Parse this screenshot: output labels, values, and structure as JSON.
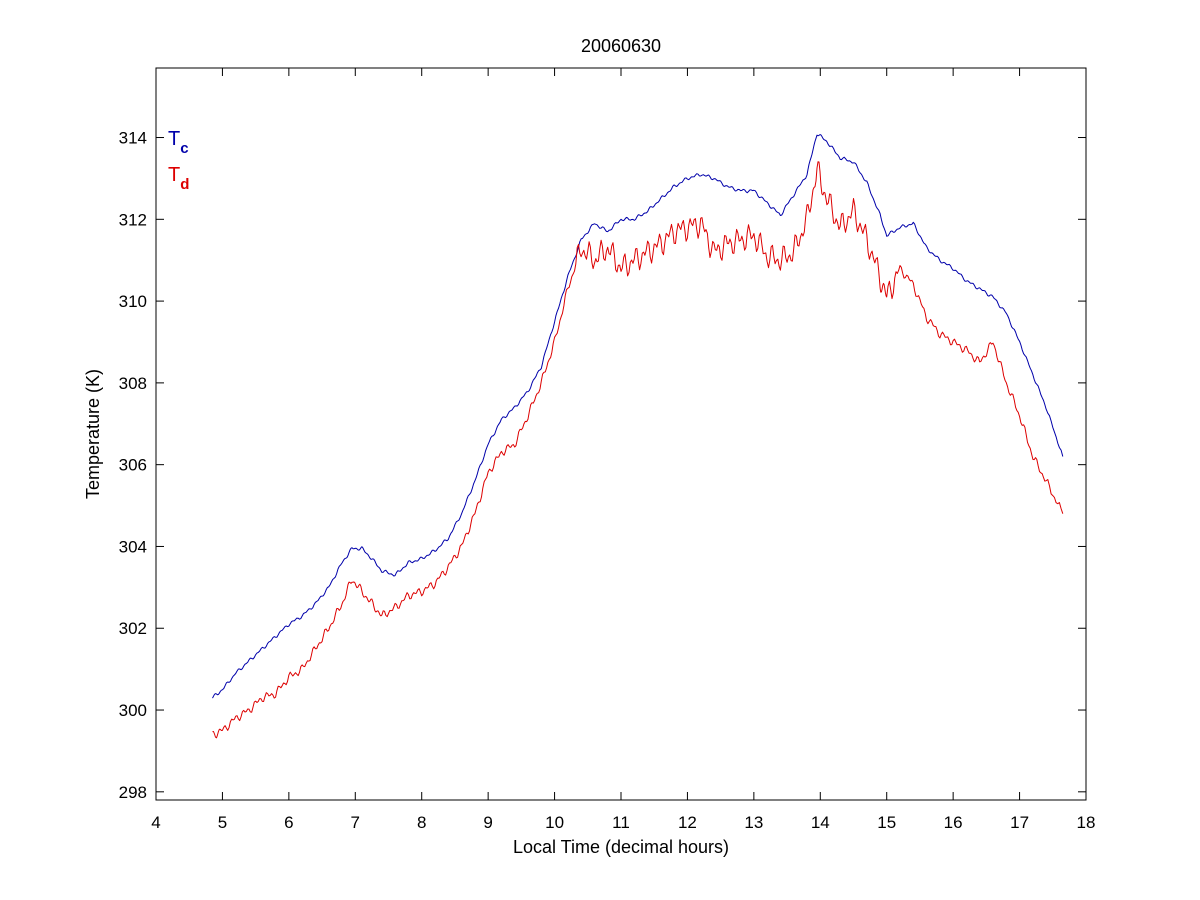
{
  "chart_data": {
    "type": "line",
    "title": "20060630",
    "xlabel": "Local Time (decimal hours)",
    "ylabel": "Temperature (K)",
    "xlim": [
      4,
      18
    ],
    "ylim": [
      297.8,
      315.7
    ],
    "xticks": [
      4,
      5,
      6,
      7,
      8,
      9,
      10,
      11,
      12,
      13,
      14,
      15,
      16,
      17,
      18
    ],
    "yticks": [
      298,
      300,
      302,
      304,
      306,
      308,
      310,
      312,
      314
    ],
    "grid": false,
    "legend_placement": "top-left",
    "legend": [
      {
        "base": "T",
        "sub": "c",
        "color": "#0000aa"
      },
      {
        "base": "T",
        "sub": "d",
        "color": "#dd0000"
      }
    ],
    "series": [
      {
        "color": "#0000aa",
        "x": [
          4.85,
          5.0,
          5.2,
          5.4,
          5.6,
          5.8,
          6.0,
          6.2,
          6.4,
          6.6,
          6.8,
          6.95,
          7.1,
          7.25,
          7.4,
          7.6,
          7.8,
          8.0,
          8.2,
          8.4,
          8.6,
          8.8,
          9.0,
          9.2,
          9.4,
          9.6,
          9.8,
          10.0,
          10.2,
          10.4,
          10.6,
          10.8,
          11.0,
          11.2,
          11.4,
          11.6,
          11.8,
          12.0,
          12.2,
          12.4,
          12.6,
          12.8,
          13.0,
          13.2,
          13.4,
          13.6,
          13.8,
          13.95,
          14.1,
          14.3,
          14.5,
          14.7,
          14.9,
          15.0,
          15.2,
          15.4,
          15.6,
          15.8,
          16.0,
          16.2,
          16.4,
          16.6,
          16.8,
          17.0,
          17.2,
          17.4,
          17.65
        ],
        "values": [
          300.3,
          300.5,
          300.9,
          301.2,
          301.5,
          301.8,
          302.1,
          302.3,
          302.6,
          303.0,
          303.6,
          303.95,
          303.95,
          303.7,
          303.4,
          303.3,
          303.6,
          303.7,
          303.9,
          304.2,
          304.8,
          305.6,
          306.5,
          307.1,
          307.4,
          307.8,
          308.4,
          309.5,
          310.6,
          311.5,
          311.9,
          311.7,
          312.0,
          312.0,
          312.2,
          312.5,
          312.8,
          313.0,
          313.1,
          313.0,
          312.8,
          312.7,
          312.7,
          312.4,
          312.1,
          312.6,
          313.1,
          314.1,
          313.9,
          313.5,
          313.4,
          312.9,
          312.1,
          311.6,
          311.8,
          311.9,
          311.3,
          311.0,
          310.8,
          310.5,
          310.3,
          310.1,
          309.7,
          309.0,
          308.2,
          307.4,
          306.2
        ]
      },
      {
        "color": "#dd0000",
        "x": [
          4.85,
          5.0,
          5.2,
          5.4,
          5.6,
          5.8,
          6.0,
          6.2,
          6.4,
          6.6,
          6.8,
          6.95,
          7.1,
          7.25,
          7.4,
          7.6,
          7.8,
          8.0,
          8.2,
          8.4,
          8.6,
          8.8,
          9.0,
          9.2,
          9.4,
          9.6,
          9.8,
          10.0,
          10.2,
          10.4,
          10.6,
          10.8,
          11.0,
          11.2,
          11.4,
          11.6,
          11.8,
          12.0,
          12.2,
          12.4,
          12.6,
          12.8,
          13.0,
          13.2,
          13.4,
          13.6,
          13.8,
          13.95,
          14.1,
          14.3,
          14.5,
          14.7,
          14.9,
          15.0,
          15.2,
          15.4,
          15.6,
          15.8,
          16.0,
          16.2,
          16.4,
          16.6,
          16.8,
          17.0,
          17.2,
          17.4,
          17.65
        ],
        "values": [
          299.4,
          299.5,
          299.8,
          300.0,
          300.3,
          300.4,
          300.8,
          301.0,
          301.5,
          302.0,
          302.6,
          303.2,
          302.9,
          302.6,
          302.3,
          302.5,
          302.8,
          302.9,
          303.1,
          303.5,
          304.0,
          304.8,
          305.8,
          306.3,
          306.5,
          307.2,
          308.0,
          309.0,
          310.3,
          311.3,
          311.0,
          311.3,
          310.8,
          311.0,
          311.2,
          311.4,
          311.7,
          311.8,
          311.9,
          311.2,
          311.4,
          311.5,
          311.6,
          311.1,
          311.0,
          311.2,
          312.0,
          313.2,
          312.5,
          311.8,
          312.2,
          311.5,
          310.6,
          310.1,
          310.8,
          310.4,
          309.6,
          309.2,
          309.0,
          308.8,
          308.5,
          309.0,
          308.0,
          307.2,
          306.2,
          305.6,
          304.8
        ]
      }
    ]
  }
}
